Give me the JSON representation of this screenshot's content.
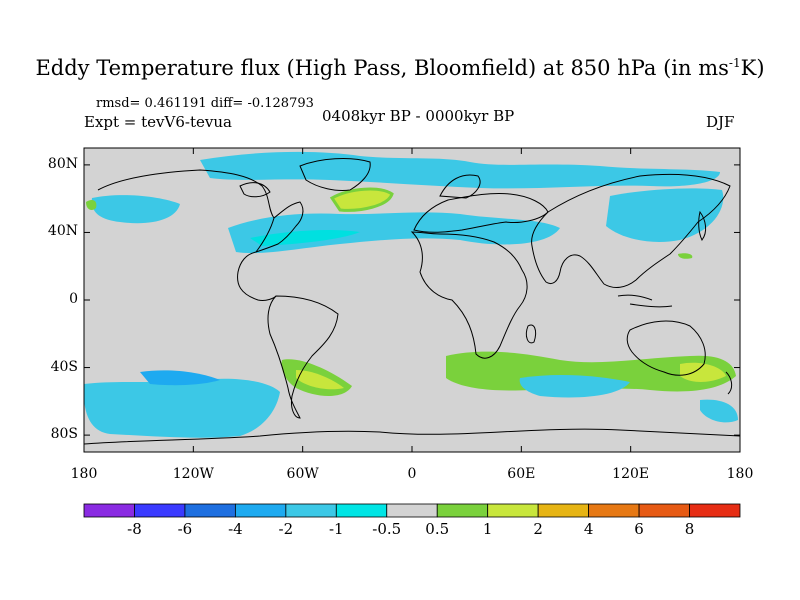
{
  "title": {
    "main": "Eddy Temperature flux (High Pass, Bloomfield) at 850 hPa (in ms",
    "sup": "-1",
    "tail": "K)"
  },
  "stats": "rmsd= 0.461191 diff= -0.128793",
  "experiment": "Expt = tevV6-tevua",
  "period": "0408kyr BP - 0000kyr BP",
  "season": "DJF",
  "map": {
    "projection": "cylindrical-equidistant",
    "lon_range": [
      -180,
      180
    ],
    "lat_range": [
      -90,
      90
    ],
    "y_ticks": [
      {
        "lat": 80,
        "label": "80N"
      },
      {
        "lat": 40,
        "label": "40N"
      },
      {
        "lat": 0,
        "label": "0"
      },
      {
        "lat": -40,
        "label": "40S"
      },
      {
        "lat": -80,
        "label": "80S"
      }
    ],
    "x_ticks": [
      {
        "lon": -180,
        "label": "180"
      },
      {
        "lon": -120,
        "label": "120W"
      },
      {
        "lon": -60,
        "label": "60W"
      },
      {
        "lon": 0,
        "label": "0"
      },
      {
        "lon": 60,
        "label": "60E"
      },
      {
        "lon": 120,
        "label": "120E"
      },
      {
        "lon": 180,
        "label": "180"
      }
    ],
    "background_color": "#d3d3d3",
    "coastline_color": "#000000"
  },
  "colorbar": {
    "colors": [
      "#8a2be2",
      "#3a3aff",
      "#1e6fe0",
      "#1eaaf0",
      "#3cc8e6",
      "#00e5e5",
      "#d3d3d3",
      "#7ad13c",
      "#c8e63c",
      "#e6b414",
      "#e67814",
      "#e65a14",
      "#e62d14"
    ],
    "labels": [
      "-8",
      "-6",
      "-4",
      "-2",
      "-1",
      "-0.5",
      "0.5",
      "1",
      "2",
      "4",
      "6",
      "8"
    ]
  },
  "anomaly_colors": {
    "neg_strong": "#3cc8e6",
    "neg_weak": "#00e0e0",
    "pos_weak": "#7ad13c",
    "pos_mid": "#c8e63c"
  }
}
